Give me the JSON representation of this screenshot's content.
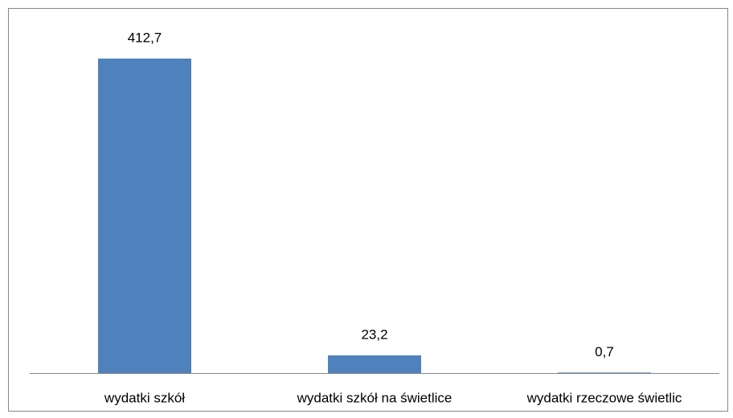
{
  "chart_data": {
    "type": "bar",
    "categories": [
      "wydatki szkół",
      "wydatki szkół na świetlice",
      "wydatki rzeczowe świetlic"
    ],
    "values": [
      412.7,
      23.2,
      0.7
    ],
    "value_labels": [
      "412,7",
      "23,2",
      "0,7"
    ],
    "color": "#4f81bd"
  }
}
